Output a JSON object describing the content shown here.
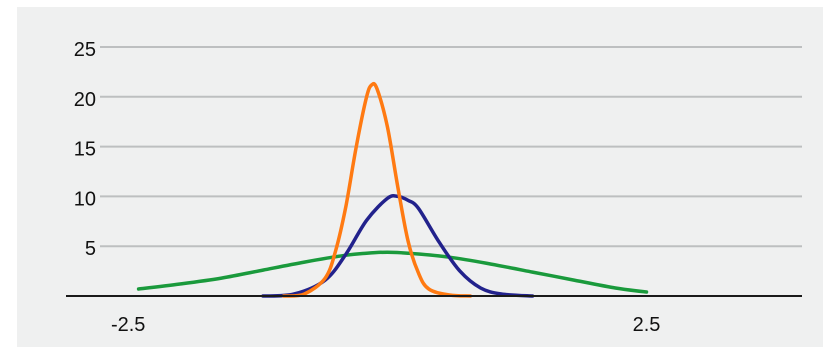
{
  "chart_data": {
    "type": "line",
    "title": "",
    "xlabel": "",
    "ylabel": "",
    "xlim": [
      -3.1,
      4.0
    ],
    "ylim": [
      0,
      25
    ],
    "grid": true,
    "legend": "none",
    "x_tick_labels": [
      "-2.5",
      "2.5"
    ],
    "x_ticks": [
      -2.5,
      2.5
    ],
    "y_tick_labels": [
      "5",
      "10",
      "15",
      "20",
      "25"
    ],
    "y_ticks": [
      5,
      10,
      15,
      20,
      25
    ],
    "series": [
      {
        "color": "#1a9a3c",
        "x": [
          -2.4,
          -2.0,
          -1.6,
          -1.2,
          -0.8,
          -0.4,
          -0.2,
          0.0,
          0.2,
          0.6,
          1.0,
          1.4,
          1.8,
          2.2,
          2.5
        ],
        "y": [
          0.7,
          1.2,
          1.8,
          2.6,
          3.4,
          4.1,
          4.3,
          4.4,
          4.3,
          3.9,
          3.2,
          2.4,
          1.6,
          0.8,
          0.4
        ]
      },
      {
        "color": "#22228c",
        "x": [
          -1.2,
          -0.9,
          -0.6,
          -0.4,
          -0.2,
          0.0,
          0.1,
          0.2,
          0.3,
          0.5,
          0.7,
          0.9,
          1.1,
          1.4
        ],
        "y": [
          0.0,
          0.2,
          1.6,
          4.2,
          7.6,
          9.8,
          10.0,
          9.6,
          8.8,
          5.4,
          2.5,
          0.8,
          0.2,
          0.0
        ]
      },
      {
        "color": "#ff7a12",
        "x": [
          -1.0,
          -0.8,
          -0.6,
          -0.5,
          -0.4,
          -0.3,
          -0.2,
          -0.15,
          -0.1,
          0.0,
          0.1,
          0.2,
          0.3,
          0.4,
          0.6,
          0.8
        ],
        "y": [
          0.0,
          0.2,
          1.8,
          4.5,
          9.0,
          15.0,
          20.0,
          21.2,
          20.8,
          17.0,
          11.0,
          5.5,
          2.3,
          0.7,
          0.1,
          0.0
        ]
      }
    ]
  }
}
